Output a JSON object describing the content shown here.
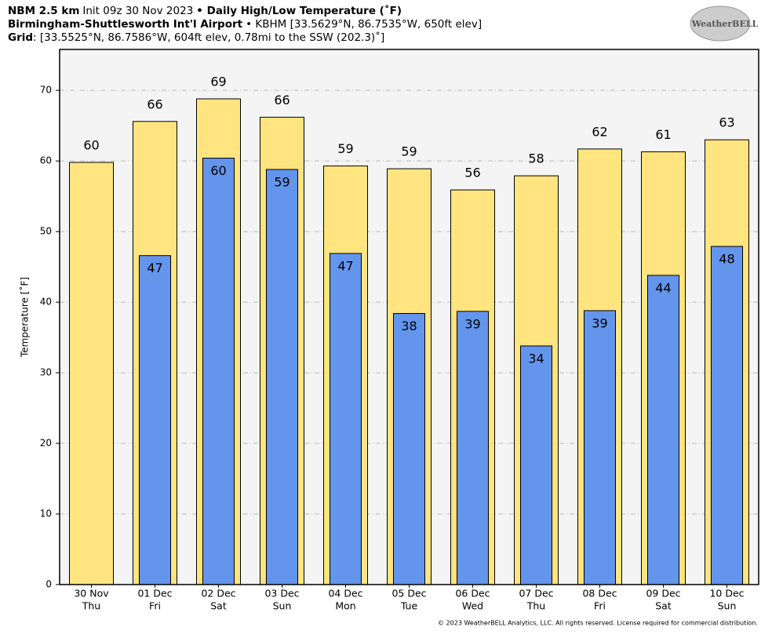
{
  "header": {
    "line1": [
      {
        "text": "NBM 2.5 km",
        "bold": true
      },
      {
        "text": "Init 09z 30 Nov 2023",
        "bold": false
      },
      {
        "text": "• Daily High/Low Temperature (˚F)",
        "bold": true
      }
    ],
    "line2": [
      {
        "text": "Birmingham-Shuttlesworth Int'l Airport",
        "bold": true
      },
      {
        "text": "• KBHM [33.5629°N, 86.7535°W, 650ft elev]",
        "bold": false
      }
    ],
    "line3": [
      {
        "text": "Grid",
        "bold": true
      },
      {
        "text": ": [33.5525°N, 86.7586°W, 604ft elev, 0.78mi to the SSW (202.3)˚]",
        "bold": false
      }
    ],
    "logo": "WeatherBELL",
    "footer": "© 2023 WeatherBELL Analytics, LLC. All rights reserved. License required for commercial distribution."
  },
  "chart_data": {
    "type": "bar",
    "ylabel": "Temperature [˚F]",
    "categories": [
      [
        "30 Nov",
        "Thu"
      ],
      [
        "01 Dec",
        "Fri"
      ],
      [
        "02 Dec",
        "Sat"
      ],
      [
        "03 Dec",
        "Sun"
      ],
      [
        "04 Dec",
        "Mon"
      ],
      [
        "05 Dec",
        "Tue"
      ],
      [
        "06 Dec",
        "Wed"
      ],
      [
        "07 Dec",
        "Thu"
      ],
      [
        "08 Dec",
        "Fri"
      ],
      [
        "09 Dec",
        "Sat"
      ],
      [
        "10 Dec",
        "Sun"
      ]
    ],
    "series": [
      {
        "name": "High",
        "color": "#ffe47f",
        "values": [
          59.8,
          65.6,
          68.8,
          66.2,
          59.3,
          58.9,
          55.9,
          57.9,
          61.7,
          61.3,
          63.0
        ],
        "value_labels": [
          "60",
          "66",
          "69",
          "66",
          "59",
          "59",
          "56",
          "58",
          "62",
          "61",
          "63"
        ]
      },
      {
        "name": "Low",
        "color": "#6495ed",
        "values": [
          null,
          46.6,
          60.4,
          58.8,
          46.9,
          38.4,
          38.7,
          33.8,
          38.8,
          43.8,
          47.9
        ],
        "value_labels": [
          null,
          "47",
          "60",
          "59",
          "47",
          "38",
          "39",
          "34",
          "39",
          "44",
          "48"
        ]
      }
    ],
    "ylim": [
      0,
      75.8
    ],
    "yticks": [
      0,
      10,
      20,
      30,
      40,
      50,
      60,
      70
    ],
    "grid": true
  }
}
